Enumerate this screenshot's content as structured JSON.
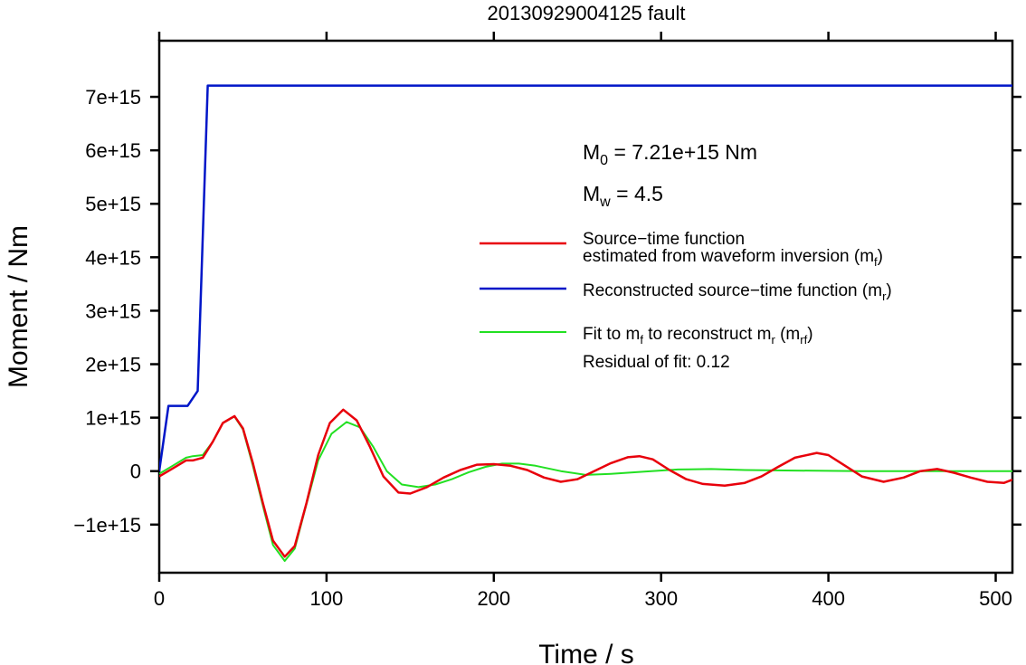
{
  "chart_data": {
    "type": "line",
    "title": "20130929004125 fault",
    "xlabel": "Time / s",
    "ylabel": "Moment / Nm",
    "xlim": [
      0,
      510
    ],
    "ylim": [
      -1900000000000000.0,
      8050000000000000.0
    ],
    "x_ticks": [
      0,
      100,
      200,
      300,
      400,
      500
    ],
    "x_tick_labels": [
      "0",
      "100",
      "200",
      "300",
      "400",
      "500"
    ],
    "y_ticks": [
      -1000000000000000.0,
      0,
      1000000000000000.0,
      2000000000000000.0,
      3000000000000000.0,
      4000000000000000.0,
      5000000000000000.0,
      6000000000000000.0,
      7000000000000000.0
    ],
    "y_tick_labels": [
      "−1e+15",
      "0",
      "1e+15",
      "2e+15",
      "3e+15",
      "4e+15",
      "5e+15",
      "6e+15",
      "7e+15"
    ],
    "grid": false,
    "legend_position": "right",
    "annotations": {
      "m0": {
        "main": "M",
        "sub": "0",
        "rest": " = 7.21e+15 Nm"
      },
      "mw": {
        "main": "M",
        "sub": "w",
        "rest": " = 4.5"
      },
      "residual": "Residual of fit: 0.12"
    },
    "legend": [
      {
        "id": "mf",
        "line1": "Source−time function",
        "line2_main": "estimated from waveform inversion (m",
        "line2_sub": "f",
        "line2_end": ")",
        "color": "#e8000b"
      },
      {
        "id": "mr",
        "line1_main": "Reconstructed source−time function (m",
        "line1_sub": "r",
        "line1_end": ")",
        "color": "#0016c8"
      },
      {
        "id": "mrf",
        "parts": [
          "Fit to m",
          "f",
          " to reconstruct m",
          "r",
          " (m",
          "rf",
          ")"
        ],
        "color": "#22e022"
      }
    ],
    "series": [
      {
        "id": "mr",
        "color": "#0016c8",
        "x": [
          0,
          5.5,
          17,
          23,
          29,
          510
        ],
        "y": [
          0,
          1220000000000000.0,
          1220000000000000.0,
          1500000000000000.0,
          7210000000000000.0,
          7210000000000000.0
        ]
      },
      {
        "id": "mf",
        "color": "#e8000b",
        "x": [
          0,
          8,
          16,
          20,
          26,
          32,
          38,
          45,
          50,
          56,
          62,
          68,
          75,
          81,
          88,
          95,
          102,
          110,
          118,
          126,
          134,
          143,
          150,
          160,
          170,
          180,
          190,
          200,
          210,
          220,
          230,
          240,
          250,
          260,
          270,
          280,
          287,
          295,
          305,
          315,
          325,
          338,
          350,
          360,
          370,
          380,
          393,
          400,
          410,
          420,
          433,
          445,
          455,
          465,
          475,
          485,
          495,
          505,
          510
        ],
        "y": [
          -100000000000000.0,
          50000000000000.0,
          200000000000000.0,
          200000000000000.0,
          250000000000000.0,
          550000000000000.0,
          900000000000000.0,
          1030000000000000.0,
          800000000000000.0,
          150000000000000.0,
          -600000000000000.0,
          -1300000000000000.0,
          -1600000000000000.0,
          -1400000000000000.0,
          -600000000000000.0,
          300000000000000.0,
          900000000000000.0,
          1150000000000000.0,
          950000000000000.0,
          450000000000000.0,
          -100000000000000.0,
          -400000000000000.0,
          -420000000000000.0,
          -300000000000000.0,
          -120000000000000.0,
          20000000000000.0,
          120000000000000.0,
          130000000000000.0,
          100000000000000.0,
          20000000000000.0,
          -120000000000000.0,
          -200000000000000.0,
          -150000000000000.0,
          0.0,
          150000000000000.0,
          260000000000000.0,
          280000000000000.0,
          220000000000000.0,
          20000000000000.0,
          -150000000000000.0,
          -240000000000000.0,
          -270000000000000.0,
          -220000000000000.0,
          -100000000000000.0,
          80000000000000.0,
          250000000000000.0,
          340000000000000.0,
          300000000000000.0,
          100000000000000.0,
          -100000000000000.0,
          -200000000000000.0,
          -120000000000000.0,
          0.0,
          40000000000000.0,
          -30000000000000.0,
          -120000000000000.0,
          -200000000000000.0,
          -220000000000000.0,
          -160000000000000.0
        ]
      },
      {
        "id": "mrf",
        "color": "#22e022",
        "x": [
          0,
          8,
          16,
          20,
          26,
          32,
          38,
          45,
          50,
          56,
          62,
          68,
          75,
          81,
          88,
          95,
          103,
          112,
          120,
          128,
          136,
          145,
          155,
          165,
          175,
          185,
          195,
          205,
          215,
          225,
          240,
          255,
          270,
          290,
          310,
          330,
          350,
          380,
          420,
          460,
          510
        ],
        "y": [
          -50000000000000.0,
          100000000000000.0,
          250000000000000.0,
          280000000000000.0,
          300000000000000.0,
          550000000000000.0,
          900000000000000.0,
          1020000000000000.0,
          780000000000000.0,
          100000000000000.0,
          -650000000000000.0,
          -1380000000000000.0,
          -1680000000000000.0,
          -1450000000000000.0,
          -620000000000000.0,
          200000000000000.0,
          700000000000000.0,
          920000000000000.0,
          820000000000000.0,
          450000000000000.0,
          0.0,
          -250000000000000.0,
          -300000000000000.0,
          -250000000000000.0,
          -150000000000000.0,
          -20000000000000.0,
          80000000000000.0,
          140000000000000.0,
          140000000000000.0,
          100000000000000.0,
          0.0,
          -70000000000000.0,
          -50000000000000.0,
          -10000000000000.0,
          30000000000000.0,
          40000000000000.0,
          20000000000000.0,
          10000000000000.0,
          0.0,
          0.0,
          0.0
        ]
      }
    ]
  }
}
